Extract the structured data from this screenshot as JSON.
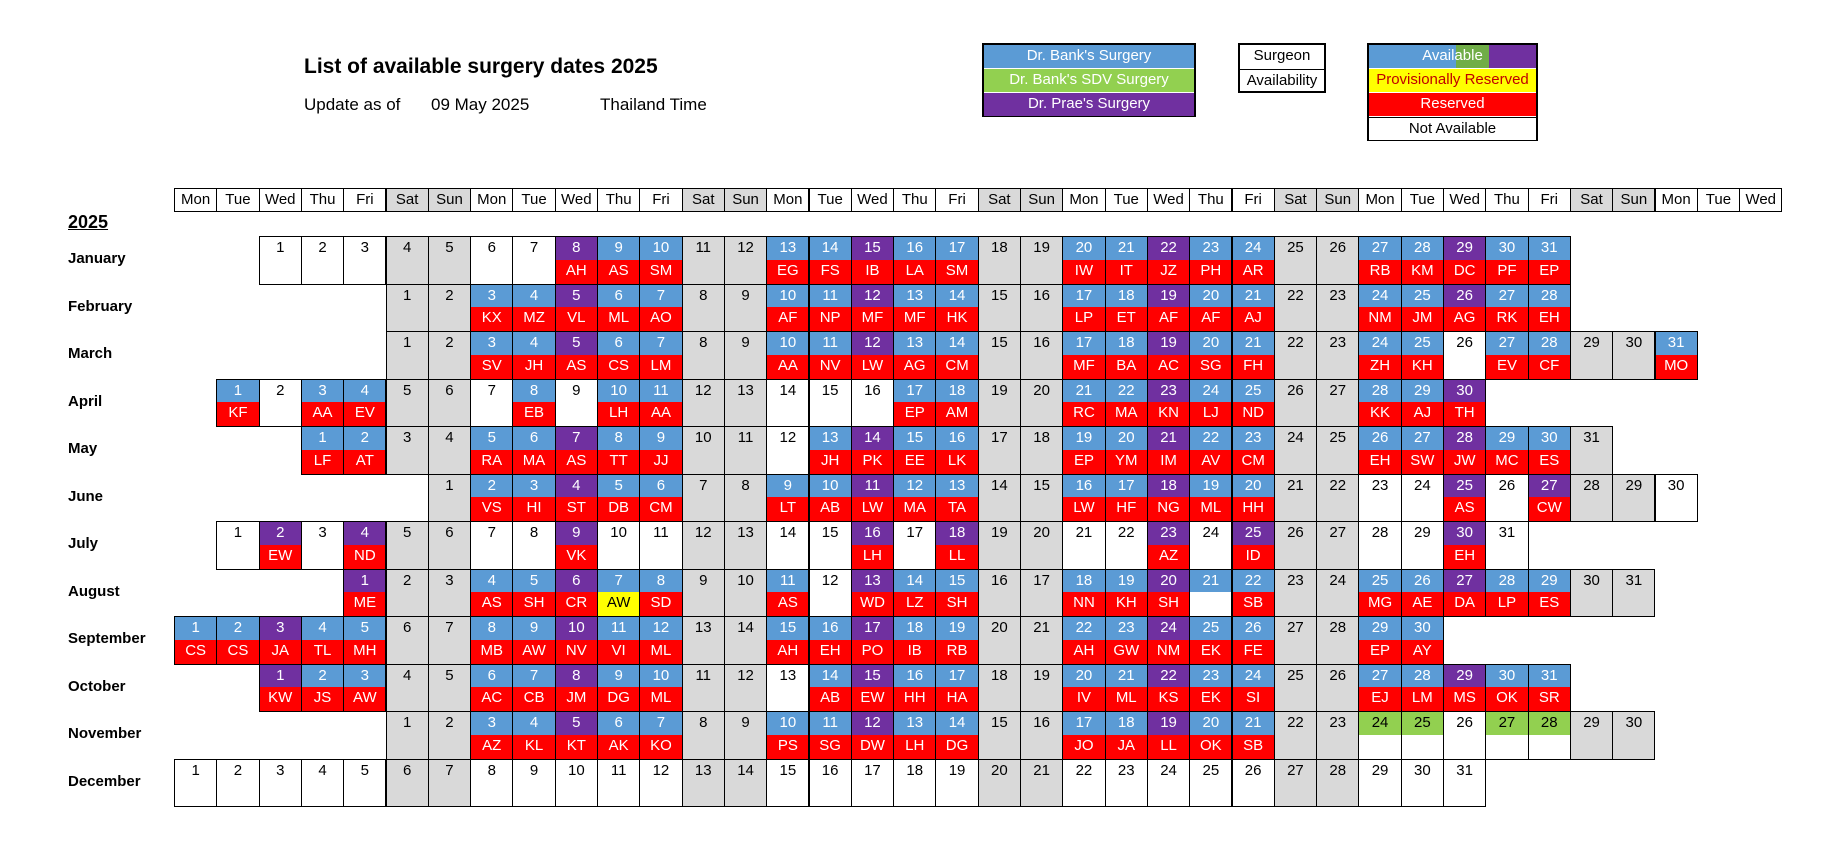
{
  "title": "List of available surgery dates 2025",
  "update": {
    "label": "Update as of",
    "date": "09 May 2025",
    "timezone": "Thailand Time"
  },
  "legend_surgeons": [
    {
      "label": "Dr. Bank's Surgery",
      "color": "#5b9bd5"
    },
    {
      "label": "Dr. Bank's SDV Surgery",
      "color": "#92d050"
    },
    {
      "label": "Dr. Prae's Surgery",
      "color": "#7030a0"
    }
  ],
  "legend_key": [
    "Surgeon",
    "Availability"
  ],
  "legend_status": [
    {
      "label": "Available",
      "color": "available"
    },
    {
      "label": "Provisionally Reserved",
      "color": "#ffff00"
    },
    {
      "label": "Reserved",
      "color": "#ff0000"
    },
    {
      "label": "Not Available",
      "color": "#ffffff"
    }
  ],
  "year": "2025",
  "weekday_headers": [
    "Mon",
    "Tue",
    "Wed",
    "Thu",
    "Fri",
    "Sat",
    "Sun",
    "Mon",
    "Tue",
    "Wed",
    "Thu",
    "Fri",
    "Sat",
    "Sun",
    "Mon",
    "Tue",
    "Wed",
    "Thu",
    "Fri",
    "Sat",
    "Sun",
    "Mon",
    "Tue",
    "Wed",
    "Thu",
    "Fri",
    "Sat",
    "Sun",
    "Mon",
    "Tue",
    "Wed",
    "Thu",
    "Fri",
    "Sat",
    "Sun",
    "Mon",
    "Tue",
    "Wed"
  ],
  "colors": {
    "bank": "#5b9bd5",
    "sdv": "#92d050",
    "prae": "#7030a0",
    "reserved": "#ff0000",
    "provisional": "#ffff00",
    "weekend": "#d9d9d9",
    "none": "#ffffff"
  },
  "months": [
    {
      "name": "January",
      "start": 2,
      "days": 31,
      "surgeon": {
        "8": "p",
        "9": "b",
        "10": "b",
        "13": "b",
        "14": "b",
        "15": "p",
        "16": "b",
        "17": "b",
        "20": "b",
        "21": "b",
        "22": "p",
        "23": "b",
        "24": "b",
        "27": "b",
        "28": "b",
        "29": "p",
        "30": "b",
        "31": "b"
      },
      "res": {
        "8": "AH",
        "9": "AS",
        "10": "SM",
        "13": "EG",
        "14": "FS",
        "15": "IB",
        "16": "LA",
        "17": "SM",
        "20": "IW",
        "21": "IT",
        "22": "JZ",
        "23": "PH",
        "24": "AR",
        "27": "RB",
        "28": "KM",
        "29": "DC",
        "30": "PF",
        "31": "EP"
      }
    },
    {
      "name": "February",
      "start": 5,
      "days": 28,
      "surgeon": {
        "3": "b",
        "4": "b",
        "5": "p",
        "6": "b",
        "7": "b",
        "10": "b",
        "11": "b",
        "12": "p",
        "13": "b",
        "14": "b",
        "17": "b",
        "18": "b",
        "19": "p",
        "20": "b",
        "21": "b",
        "24": "b",
        "25": "b",
        "26": "p",
        "27": "b",
        "28": "b"
      },
      "res": {
        "3": "KX",
        "4": "MZ",
        "5": "VL",
        "6": "ML",
        "7": "AO",
        "10": "AF",
        "11": "NP",
        "12": "MF",
        "13": "MF",
        "14": "HK",
        "17": "LP",
        "18": "ET",
        "19": "AF",
        "20": "AF",
        "21": "AJ",
        "24": "NM",
        "25": "JM",
        "26": "AG",
        "27": "RK",
        "28": "EH"
      }
    },
    {
      "name": "March",
      "start": 5,
      "days": 31,
      "surgeon": {
        "3": "b",
        "4": "b",
        "5": "p",
        "6": "b",
        "7": "b",
        "10": "b",
        "11": "b",
        "12": "p",
        "13": "b",
        "14": "b",
        "17": "b",
        "18": "b",
        "19": "p",
        "20": "b",
        "21": "b",
        "24": "b",
        "25": "b",
        "27": "b",
        "28": "b",
        "31": "b"
      },
      "res": {
        "3": "SV",
        "4": "JH",
        "5": "AS",
        "6": "CS",
        "7": "LM",
        "10": "AA",
        "11": "NV",
        "12": "LW",
        "13": "AG",
        "14": "CM",
        "17": "MF",
        "18": "BA",
        "19": "AC",
        "20": "SG",
        "21": "FH",
        "24": "ZH",
        "25": "KH",
        "27": "EV",
        "28": "CF",
        "31": "MO"
      }
    },
    {
      "name": "April",
      "start": 1,
      "days": 30,
      "surgeon": {
        "1": "b",
        "3": "b",
        "4": "b",
        "8": "b",
        "10": "b",
        "11": "b",
        "17": "b",
        "18": "b",
        "21": "b",
        "22": "b",
        "23": "p",
        "24": "b",
        "25": "b",
        "28": "b",
        "29": "b",
        "30": "p"
      },
      "res": {
        "1": "KF",
        "3": "AA",
        "4": "EV",
        "8": "EB",
        "10": "LH",
        "11": "AA",
        "17": "EP",
        "18": "AM",
        "21": "RC",
        "22": "MA",
        "23": "KN",
        "24": "LJ",
        "25": "ND",
        "28": "KK",
        "29": "AJ",
        "30": "TH"
      }
    },
    {
      "name": "May",
      "start": 3,
      "days": 31,
      "surgeon": {
        "1": "b",
        "2": "b",
        "5": "b",
        "6": "b",
        "7": "p",
        "8": "b",
        "9": "b",
        "13": "b",
        "14": "p",
        "15": "b",
        "16": "b",
        "19": "b",
        "20": "b",
        "21": "p",
        "22": "b",
        "23": "b",
        "26": "b",
        "27": "b",
        "28": "p",
        "29": "b",
        "30": "b"
      },
      "res": {
        "1": "LF",
        "2": "AT",
        "5": "RA",
        "6": "MA",
        "7": "AS",
        "8": "TT",
        "9": "JJ",
        "13": "JH",
        "14": "PK",
        "15": "EE",
        "16": "LK",
        "19": "EP",
        "20": "YM",
        "21": "IM",
        "22": "AV",
        "23": "CM",
        "26": "EH",
        "27": "SW",
        "28": "JW",
        "29": "MC",
        "30": "ES"
      }
    },
    {
      "name": "June",
      "start": 6,
      "days": 30,
      "surgeon": {
        "2": "b",
        "3": "b",
        "4": "p",
        "5": "b",
        "6": "b",
        "9": "b",
        "10": "b",
        "11": "p",
        "12": "b",
        "13": "b",
        "16": "b",
        "17": "b",
        "18": "p",
        "19": "b",
        "20": "b",
        "25": "p",
        "27": "p"
      },
      "res": {
        "2": "VS",
        "3": "HI",
        "4": "ST",
        "5": "DB",
        "6": "CM",
        "9": "LT",
        "10": "AB",
        "11": "LW",
        "12": "MA",
        "13": "TA",
        "16": "LW",
        "17": "HF",
        "18": "NG",
        "19": "ML",
        "20": "HH",
        "25": "AS",
        "27": "CW"
      }
    },
    {
      "name": "July",
      "start": 1,
      "days": 31,
      "surgeon": {
        "2": "p",
        "4": "p",
        "9": "p",
        "16": "p",
        "18": "p",
        "23": "p",
        "25": "p",
        "30": "p"
      },
      "res": {
        "2": "EW",
        "4": "ND",
        "9": "VK",
        "16": "LH",
        "18": "LL",
        "23": "AZ",
        "25": "ID",
        "30": "EH"
      }
    },
    {
      "name": "August",
      "start": 4,
      "days": 31,
      "surgeon": {
        "1": "p",
        "4": "b",
        "5": "b",
        "6": "p",
        "7": "b",
        "8": "b",
        "11": "b",
        "13": "p",
        "14": "b",
        "15": "b",
        "18": "b",
        "19": "b",
        "20": "p",
        "21": "b",
        "22": "b",
        "25": "b",
        "26": "b",
        "27": "p",
        "28": "b",
        "29": "b"
      },
      "res": {
        "1": "ME",
        "4": "AS",
        "5": "SH",
        "6": "CR",
        "8": "SD",
        "11": "AS",
        "13": "WD",
        "14": "LZ",
        "15": "SH",
        "18": "NN",
        "19": "KH",
        "20": "SH",
        "22": "SB",
        "25": "MG",
        "26": "AE",
        "27": "DA",
        "28": "LP",
        "29": "ES"
      },
      "prov": {
        "7": "AW"
      }
    },
    {
      "name": "September",
      "start": 0,
      "days": 30,
      "surgeon": {
        "1": "b",
        "2": "b",
        "3": "p",
        "4": "b",
        "5": "b",
        "8": "b",
        "9": "b",
        "10": "p",
        "11": "b",
        "12": "b",
        "15": "b",
        "16": "b",
        "17": "p",
        "18": "b",
        "19": "b",
        "22": "b",
        "23": "b",
        "24": "p",
        "25": "b",
        "26": "b",
        "29": "b",
        "30": "b"
      },
      "res": {
        "1": "CS",
        "2": "CS",
        "3": "JA",
        "4": "TL",
        "5": "MH",
        "8": "MB",
        "9": "AW",
        "10": "NV",
        "11": "VI",
        "12": "ML",
        "15": "AH",
        "16": "EH",
        "17": "PO",
        "18": "IB",
        "19": "RB",
        "22": "AH",
        "23": "GW",
        "24": "NM",
        "25": "EK",
        "26": "FE",
        "29": "EP",
        "30": "AY"
      }
    },
    {
      "name": "October",
      "start": 2,
      "days": 31,
      "surgeon": {
        "1": "p",
        "2": "b",
        "3": "b",
        "6": "b",
        "7": "b",
        "8": "p",
        "9": "b",
        "10": "b",
        "14": "b",
        "15": "p",
        "16": "b",
        "17": "b",
        "20": "b",
        "21": "b",
        "22": "p",
        "23": "b",
        "24": "b",
        "27": "b",
        "28": "b",
        "29": "p",
        "30": "b",
        "31": "b"
      },
      "res": {
        "1": "KW",
        "2": "JS",
        "3": "AW",
        "6": "AC",
        "7": "CB",
        "8": "JM",
        "9": "DG",
        "10": "ML",
        "14": "AB",
        "15": "EW",
        "16": "HH",
        "17": "HA",
        "20": "IV",
        "21": "ML",
        "22": "KS",
        "23": "EK",
        "24": "SI",
        "27": "EJ",
        "28": "LM",
        "29": "MS",
        "30": "OK",
        "31": "SR"
      }
    },
    {
      "name": "November",
      "start": 5,
      "days": 30,
      "surgeon": {
        "3": "b",
        "4": "b",
        "5": "p",
        "6": "b",
        "7": "b",
        "10": "b",
        "11": "b",
        "12": "p",
        "13": "b",
        "14": "b",
        "17": "b",
        "18": "b",
        "19": "p",
        "20": "b",
        "21": "b",
        "24": "s",
        "25": "s",
        "27": "s",
        "28": "s"
      },
      "res": {
        "3": "AZ",
        "4": "KL",
        "5": "KT",
        "6": "AK",
        "7": "KO",
        "10": "PS",
        "11": "SG",
        "12": "DW",
        "13": "LH",
        "14": "DG",
        "17": "JO",
        "18": "JA",
        "19": "LL",
        "20": "OK",
        "21": "SB"
      }
    },
    {
      "name": "December",
      "start": 0,
      "days": 31,
      "surgeon": {},
      "res": {}
    }
  ]
}
